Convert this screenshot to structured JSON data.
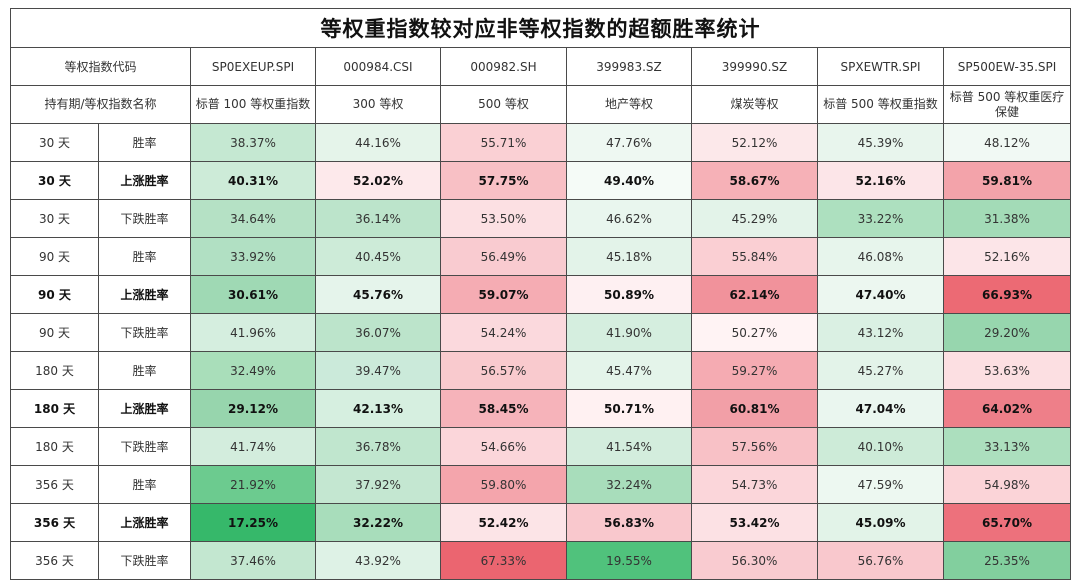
{
  "title": "等权重指数较对应非等权指数的超额胜率统计",
  "header": {
    "code_label": "等权指数代码",
    "name_label": "持有期/等权指数名称",
    "columns": [
      {
        "code": "SP0EXEUP.SPI",
        "name": "标普 100 等权重指数"
      },
      {
        "code": "000984.CSI",
        "name": "300 等权"
      },
      {
        "code": "000982.SH",
        "name": "500 等权"
      },
      {
        "code": "399983.SZ",
        "name": "地产等权"
      },
      {
        "code": "399990.SZ",
        "name": "煤炭等权"
      },
      {
        "code": "SPXEWTR.SPI",
        "name": "标普 500 等权重指数"
      },
      {
        "code": "SP500EW-35.SPI",
        "name": "标普 500 等权重医疗保健"
      }
    ]
  },
  "rows": [
    {
      "period": "30 天",
      "metric": "胜率",
      "bold": false,
      "values": [
        "38.37%",
        "44.16%",
        "55.71%",
        "47.76%",
        "52.12%",
        "45.39%",
        "48.12%"
      ],
      "colors": [
        "#c5e8d2",
        "#e5f4ea",
        "#fad0d4",
        "#eef8f2",
        "#fce8ea",
        "#e8f5ed",
        "#f1f9f4"
      ]
    },
    {
      "period": "30 天",
      "metric": "上涨胜率",
      "bold": true,
      "values": [
        "40.31%",
        "52.02%",
        "57.75%",
        "49.40%",
        "58.67%",
        "52.16%",
        "59.81%"
      ],
      "colors": [
        "#cdebd8",
        "#fde9eb",
        "#f8c0c5",
        "#f5fbf7",
        "#f6b1b7",
        "#fce5e8",
        "#f3a3aa"
      ]
    },
    {
      "period": "30 天",
      "metric": "下跌胜率",
      "bold": false,
      "values": [
        "34.64%",
        "36.14%",
        "53.50%",
        "46.62%",
        "45.29%",
        "33.22%",
        "31.38%"
      ],
      "colors": [
        "#b5e1c5",
        "#bce4cb",
        "#fce0e3",
        "#e9f6ee",
        "#e3f3e9",
        "#ade0bf",
        "#a3dbb7"
      ]
    },
    {
      "period": "90 天",
      "metric": "胜率",
      "bold": false,
      "values": [
        "33.92%",
        "40.45%",
        "56.49%",
        "45.18%",
        "55.84%",
        "46.08%",
        "52.16%"
      ],
      "colors": [
        "#b1e0c3",
        "#cdebd8",
        "#f9cbd0",
        "#e3f3e9",
        "#facfd3",
        "#e7f5ec",
        "#fce5e8"
      ]
    },
    {
      "period": "90 天",
      "metric": "上涨胜率",
      "bold": true,
      "values": [
        "30.61%",
        "45.76%",
        "59.07%",
        "50.89%",
        "62.14%",
        "47.40%",
        "66.93%"
      ],
      "colors": [
        "#9fd9b4",
        "#e5f4eb",
        "#f5acb3",
        "#fef0f2",
        "#f1929b",
        "#ecf7f0",
        "#ec6a74"
      ]
    },
    {
      "period": "90 天",
      "metric": "下跌胜率",
      "bold": false,
      "values": [
        "41.96%",
        "36.07%",
        "54.24%",
        "41.90%",
        "50.27%",
        "43.12%",
        "29.20%"
      ],
      "colors": [
        "#d5eedf",
        "#bce4cb",
        "#fbd9dd",
        "#d5eedf",
        "#fff3f4",
        "#daf0e3",
        "#97d6ae"
      ]
    },
    {
      "period": "180 天",
      "metric": "胜率",
      "bold": false,
      "values": [
        "32.49%",
        "39.47%",
        "56.57%",
        "45.47%",
        "59.27%",
        "45.27%",
        "53.63%"
      ],
      "colors": [
        "#a9deba",
        "#cbeada",
        "#f9cace",
        "#e4f4ea",
        "#f5abb2",
        "#e3f3e9",
        "#fcdfe2"
      ]
    },
    {
      "period": "180 天",
      "metric": "上涨胜率",
      "bold": true,
      "values": [
        "29.12%",
        "42.13%",
        "58.45%",
        "50.71%",
        "60.81%",
        "47.04%",
        "64.02%"
      ],
      "colors": [
        "#97d5ad",
        "#d6efe0",
        "#f6b3ba",
        "#fff1f2",
        "#f29fa7",
        "#eaf6ef",
        "#ee7f89"
      ]
    },
    {
      "period": "180 天",
      "metric": "下跌胜率",
      "bold": false,
      "values": [
        "41.74%",
        "36.78%",
        "54.66%",
        "41.54%",
        "57.56%",
        "40.10%",
        "33.13%"
      ],
      "colors": [
        "#d3eddd",
        "#c0e6ce",
        "#fbd6da",
        "#d3eddd",
        "#f8c1c6",
        "#cdebd8",
        "#acdfbe"
      ]
    },
    {
      "period": "356 天",
      "metric": "胜率",
      "bold": false,
      "values": [
        "21.92%",
        "37.92%",
        "59.80%",
        "32.24%",
        "54.73%",
        "47.59%",
        "54.98%"
      ],
      "colors": [
        "#6ccb8f",
        "#c4e7d1",
        "#f4a5ac",
        "#a8ddbb",
        "#fbd6da",
        "#edf8f1",
        "#fbd4d8"
      ]
    },
    {
      "period": "356 天",
      "metric": "上涨胜率",
      "bold": true,
      "values": [
        "17.25%",
        "32.22%",
        "52.42%",
        "56.83%",
        "53.42%",
        "45.09%",
        "65.70%"
      ],
      "colors": [
        "#36b86a",
        "#a8ddbb",
        "#fce4e7",
        "#f9c8cd",
        "#fce1e4",
        "#e2f3e8",
        "#ed717c"
      ]
    },
    {
      "period": "356 天",
      "metric": "下跌胜率",
      "bold": false,
      "values": [
        "37.46%",
        "43.92%",
        "67.33%",
        "19.55%",
        "56.30%",
        "56.76%",
        "25.35%"
      ],
      "colors": [
        "#c3e7d0",
        "#def2e6",
        "#eb6570",
        "#50c27c",
        "#f9cbd0",
        "#f9c8cd",
        "#82cf9e"
      ]
    }
  ]
}
